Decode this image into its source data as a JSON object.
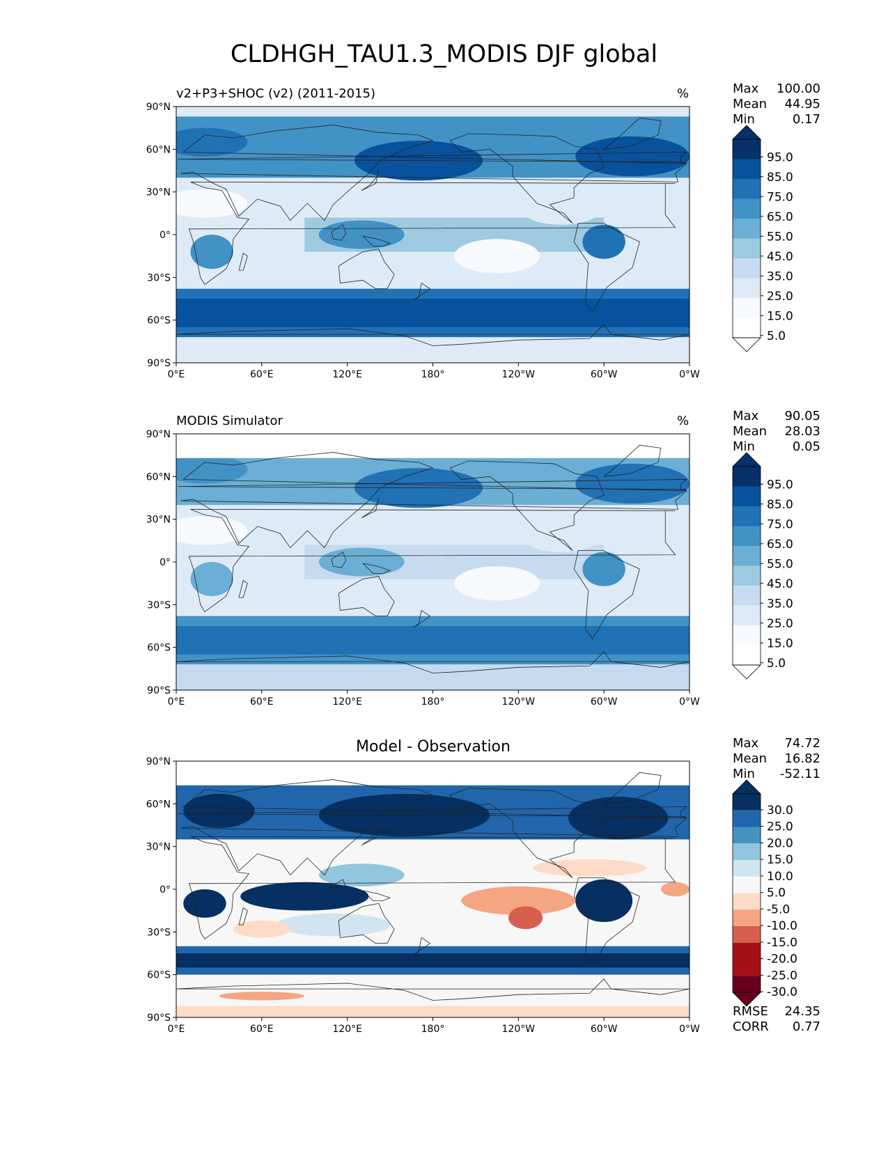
{
  "figure_title": "CLDHGH_TAU1.3_MODIS DJF global",
  "colors": {
    "blues": [
      "#f7fbff",
      "#deebf7",
      "#c6dbef",
      "#9ecae1",
      "#6baed6",
      "#4292c6",
      "#2171b5",
      "#08519c",
      "#08306b"
    ],
    "diverging": [
      "#67001f",
      "#a50f15",
      "#d6604d",
      "#f4a582",
      "#fddbc7",
      "#f7f7f7",
      "#d1e5f0",
      "#92c5de",
      "#4393c3",
      "#2166ac",
      "#053061"
    ]
  },
  "axes": {
    "lon_ticks": [
      "0°E",
      "60°E",
      "120°E",
      "180°",
      "120°W",
      "60°W",
      "0°W"
    ],
    "lat_ticks": [
      "90°N",
      "60°N",
      "30°N",
      "0°",
      "30°S",
      "60°S",
      "90°S"
    ]
  },
  "panels": [
    {
      "id": "test",
      "title": "v2+P3+SHOC (v2) (2011-2015)",
      "units": "%",
      "stats": [
        {
          "label": "Max",
          "value": "100.00"
        },
        {
          "label": "Mean",
          "value": "44.95"
        },
        {
          "label": "Min",
          "value": "0.17"
        }
      ],
      "colorbar_levels": [
        "95.0",
        "85.0",
        "75.0",
        "65.0",
        "55.0",
        "45.0",
        "35.0",
        "25.0",
        "15.0",
        "5.0"
      ]
    },
    {
      "id": "reference",
      "title": "MODIS Simulator",
      "units": "%",
      "stats": [
        {
          "label": "Max",
          "value": "90.05"
        },
        {
          "label": "Mean",
          "value": "28.03"
        },
        {
          "label": "Min",
          "value": "0.05"
        }
      ],
      "colorbar_levels": [
        "95.0",
        "85.0",
        "75.0",
        "65.0",
        "55.0",
        "45.0",
        "35.0",
        "25.0",
        "15.0",
        "5.0"
      ]
    },
    {
      "id": "diff",
      "title": "Model - Observation",
      "units": "",
      "stats": [
        {
          "label": "Max",
          "value": "74.72"
        },
        {
          "label": "Mean",
          "value": "16.82"
        },
        {
          "label": "Min",
          "value": "-52.11"
        }
      ],
      "metrics": [
        {
          "label": "RMSE",
          "value": "24.35"
        },
        {
          "label": "CORR",
          "value": "0.77"
        }
      ],
      "colorbar_levels": [
        "30.0",
        "25.0",
        "20.0",
        "15.0",
        "10.0",
        "5.0",
        "-5.0",
        "-10.0",
        "-15.0",
        "-20.0",
        "-25.0",
        "-30.0"
      ]
    }
  ]
}
